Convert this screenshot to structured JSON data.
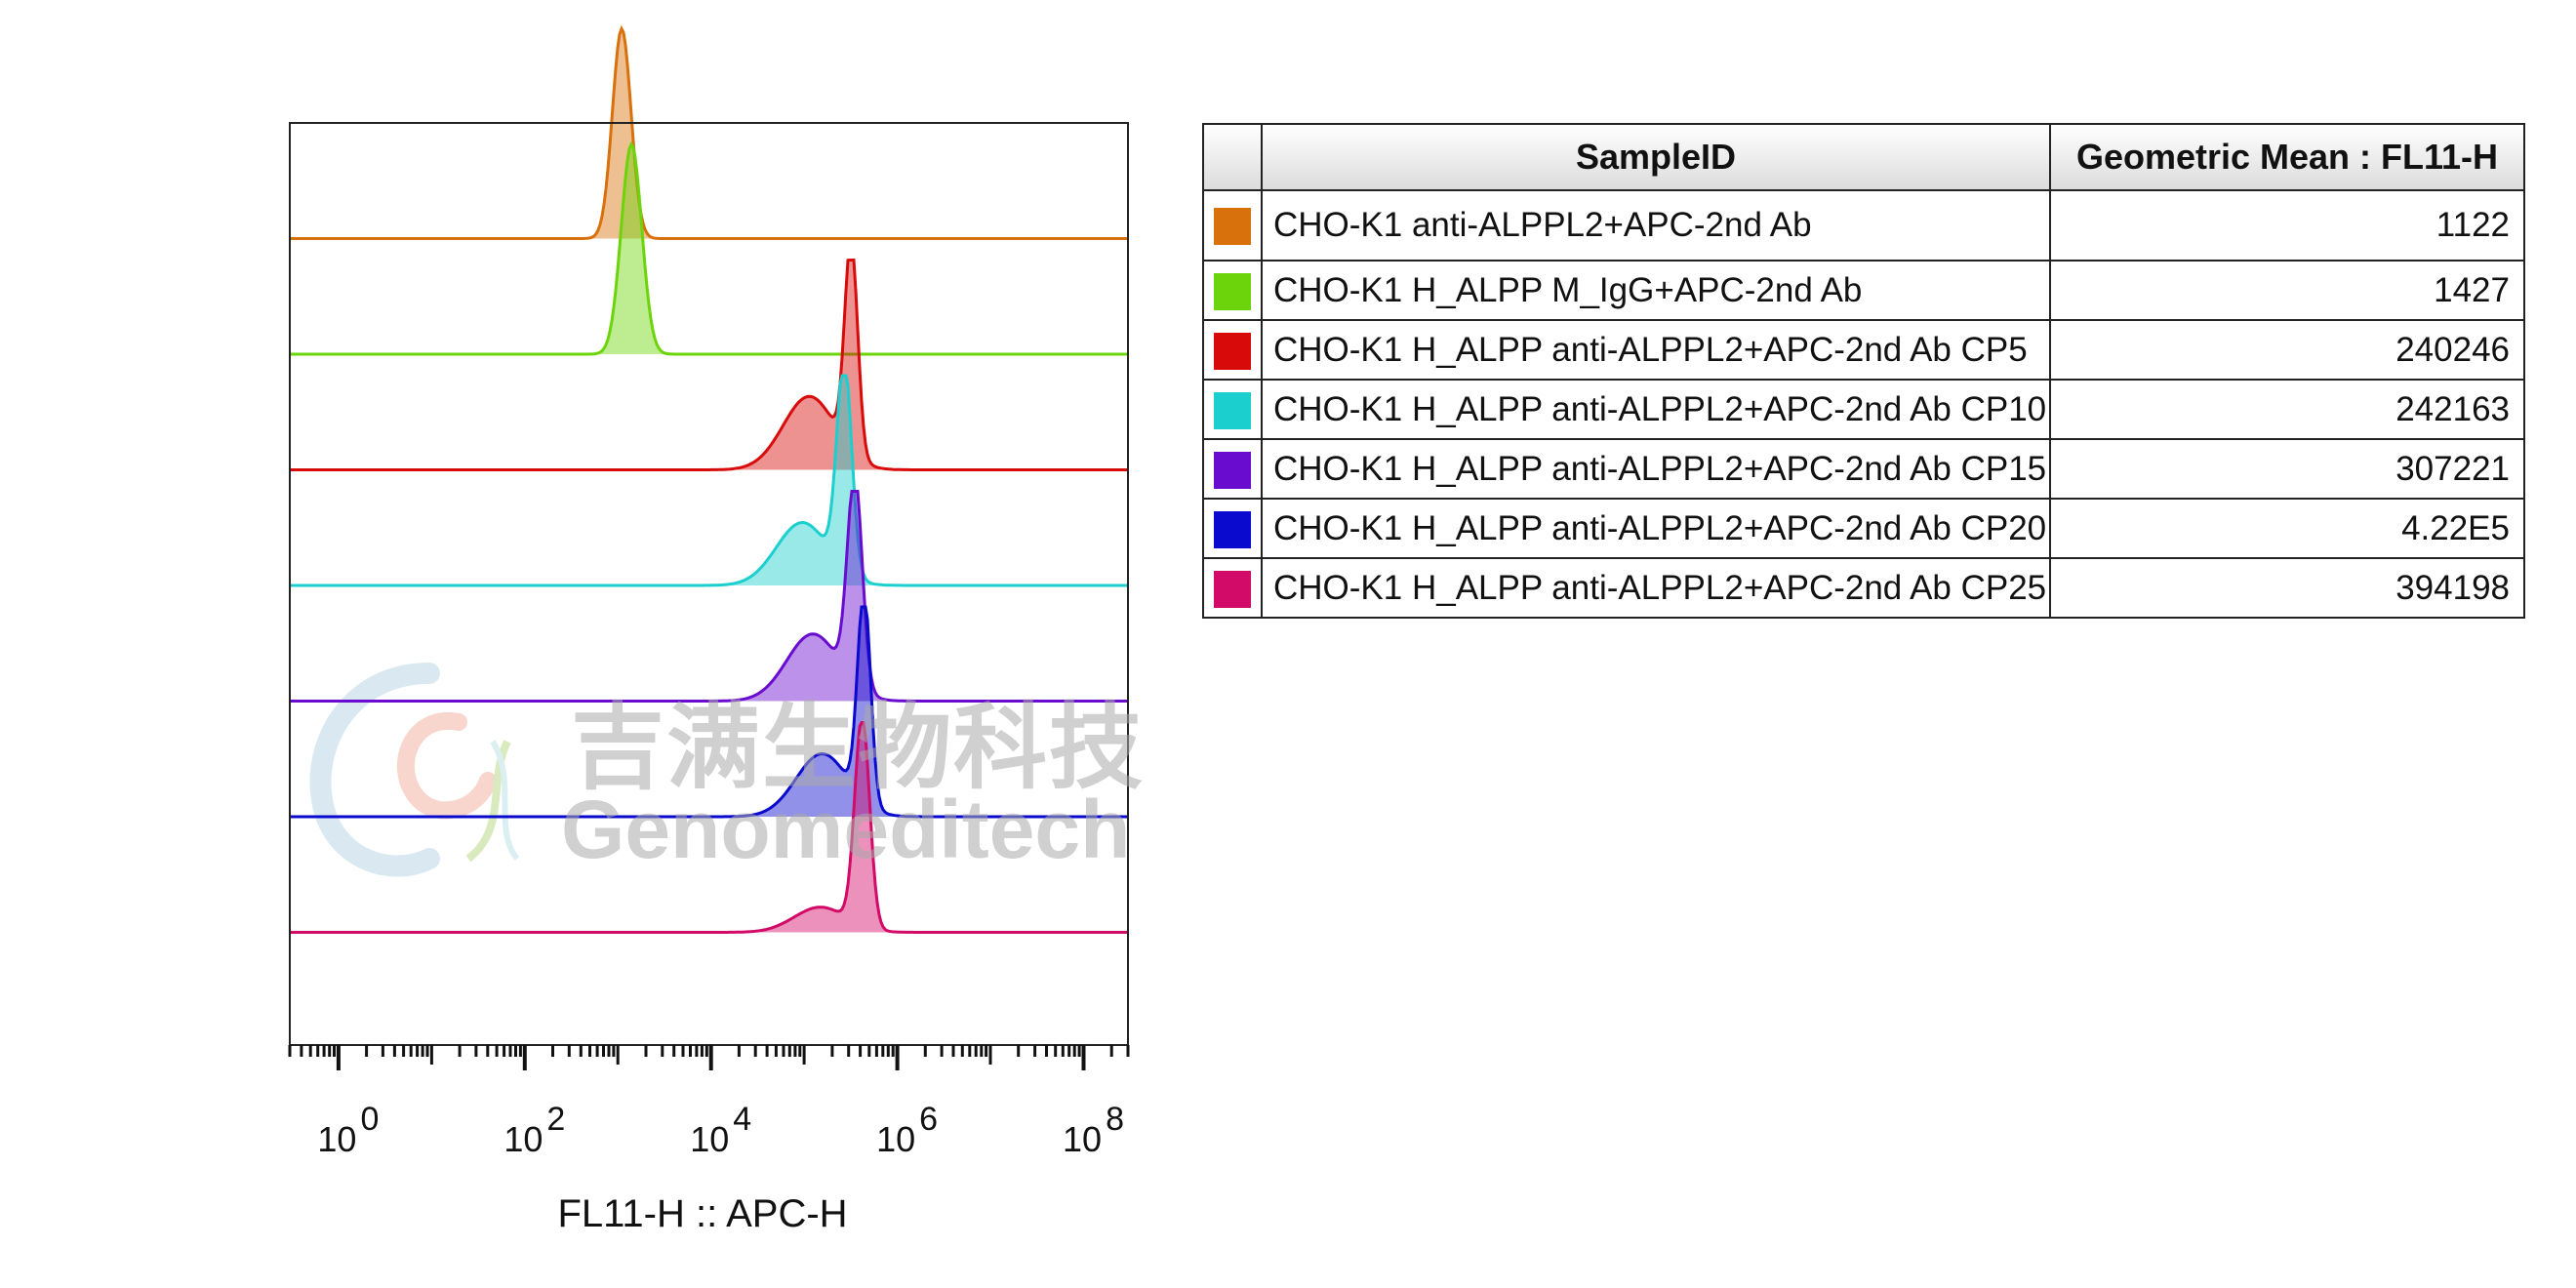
{
  "chart_data": {
    "type": "histogram-overlay",
    "xlabel": "FL11-H :: APC-H",
    "xscale": "log",
    "x_tick_labels": [
      {
        "base": "10",
        "exp": "0",
        "value": 1
      },
      {
        "base": "10",
        "exp": "2",
        "value": 100
      },
      {
        "base": "10",
        "exp": "4",
        "value": 10000
      },
      {
        "base": "10",
        "exp": "6",
        "value": 1000000
      },
      {
        "base": "10",
        "exp": "8",
        "value": 100000000
      }
    ],
    "xlim": [
      0.3,
      300000000
    ],
    "series": [
      {
        "name": "CHO-K1 anti-ALPPL2+APC-2nd Ab",
        "color": "#d8700c",
        "peak": 1100,
        "value": "1122"
      },
      {
        "name": "CHO-K1 H_ALPP M_IgG+APC-2nd Ab",
        "color": "#6cd40a",
        "peak": 1400,
        "value": "1427"
      },
      {
        "name": "CHO-K1 H_ALPP anti-ALPPL2+APC-2nd Ab CP5",
        "color": "#d80a0a",
        "peak": 320000,
        "value": "240246"
      },
      {
        "name": "CHO-K1 H_ALPP anti-ALPPL2+APC-2nd Ab CP10",
        "color": "#1ccfcf",
        "peak": 270000,
        "value": "242163"
      },
      {
        "name": "CHO-K1 H_ALPP anti-ALPPL2+APC-2nd Ab CP15",
        "color": "#6a0cd0",
        "peak": 350000,
        "value": "307221"
      },
      {
        "name": "CHO-K1 H_ALPP anti-ALPPL2+APC-2nd Ab CP20",
        "color": "#0a0acf",
        "peak": 440000,
        "value": "4.22E5"
      },
      {
        "name": "CHO-K1 H_ALPP anti-ALPPL2+APC-2nd Ab CP25",
        "color": "#d20a68",
        "peak": 420000,
        "value": "394198"
      }
    ]
  },
  "legend": {
    "header_sample": "SampleID",
    "header_value": "Geometric Mean : FL11-H"
  },
  "watermark": {
    "cn": "吉满生物科技",
    "en": "Genomeditech"
  }
}
